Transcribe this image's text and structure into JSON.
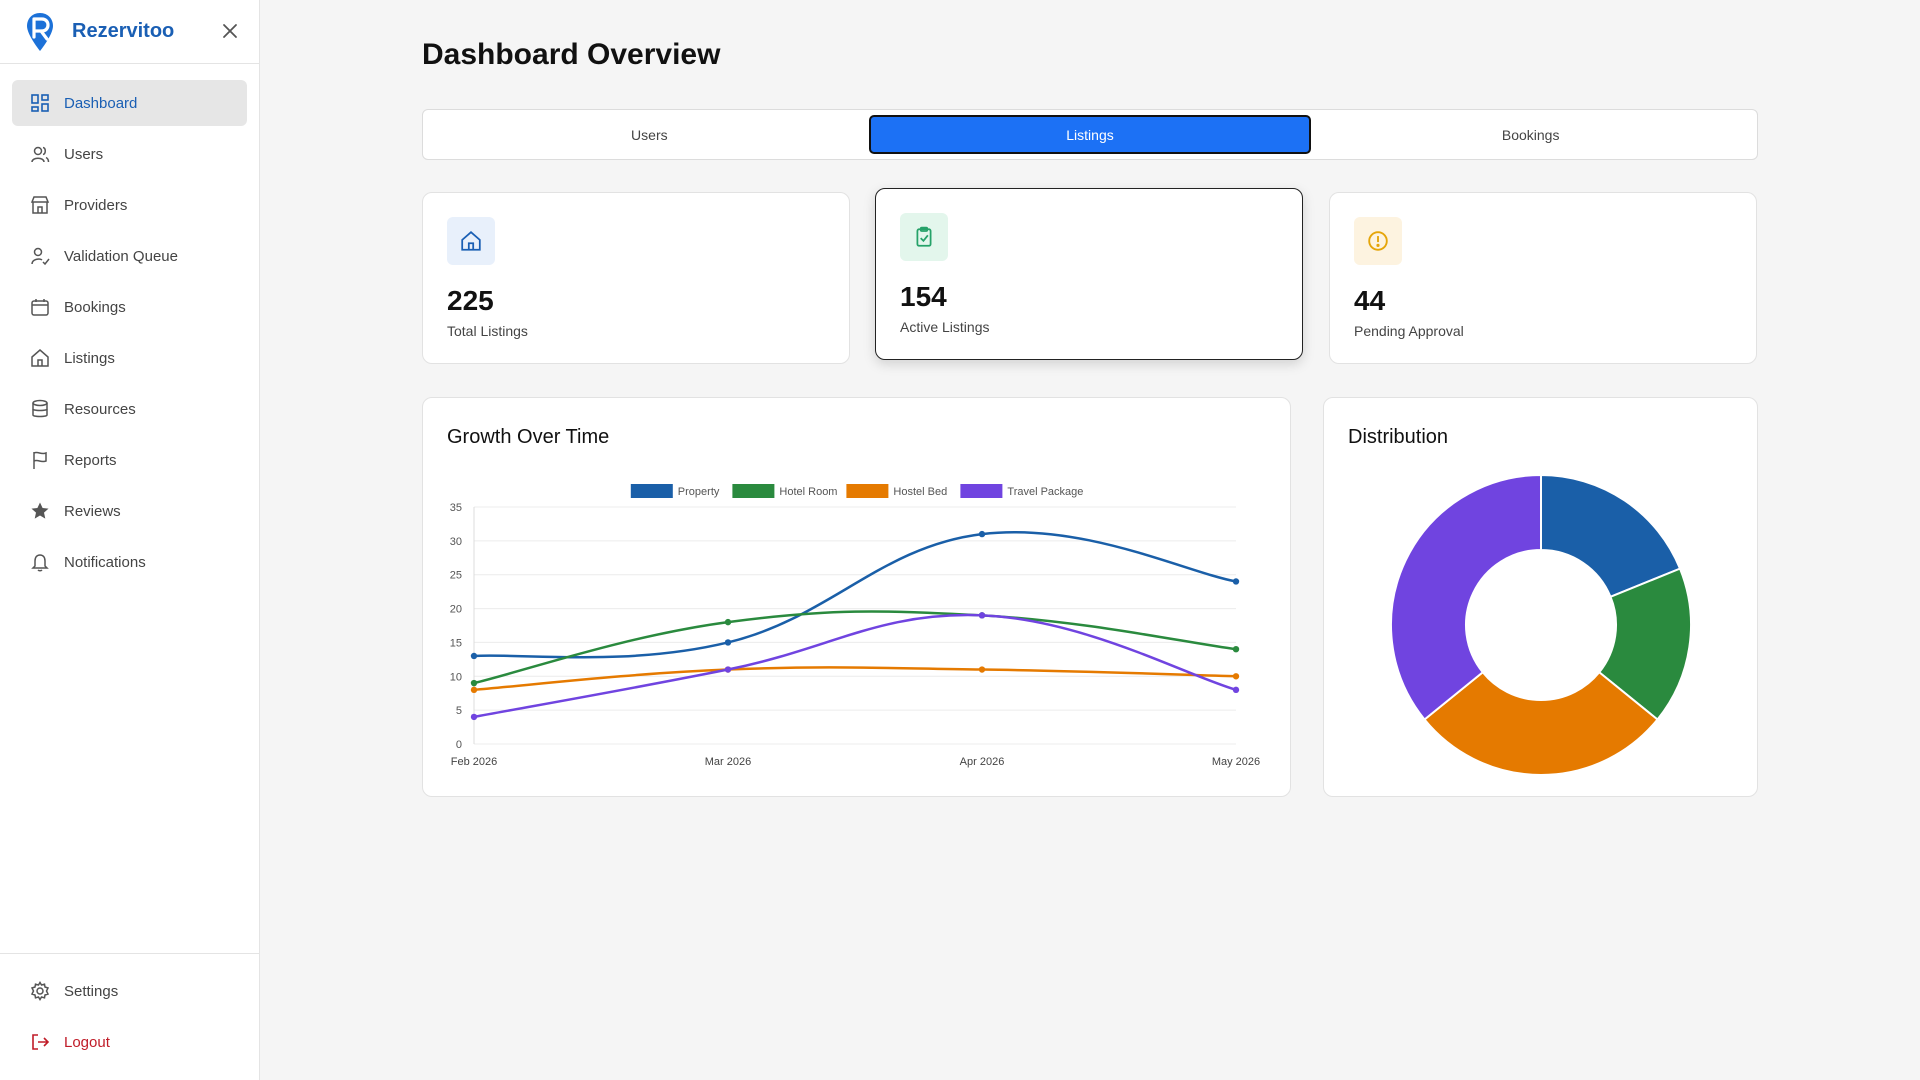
{
  "app": {
    "name": "Rezervitoo"
  },
  "sidebar": {
    "items": [
      {
        "label": "Dashboard",
        "icon": "dashboard-icon"
      },
      {
        "label": "Users",
        "icon": "users-icon"
      },
      {
        "label": "Providers",
        "icon": "store-icon"
      },
      {
        "label": "Validation Queue",
        "icon": "user-check-icon"
      },
      {
        "label": "Bookings",
        "icon": "calendar-icon"
      },
      {
        "label": "Listings",
        "icon": "home-icon"
      },
      {
        "label": "Resources",
        "icon": "database-icon"
      },
      {
        "label": "Reports",
        "icon": "flag-icon"
      },
      {
        "label": "Reviews",
        "icon": "star-icon"
      },
      {
        "label": "Notifications",
        "icon": "bell-icon"
      }
    ],
    "bottom": [
      {
        "label": "Settings",
        "icon": "gear-icon"
      },
      {
        "label": "Logout",
        "icon": "logout-icon"
      }
    ]
  },
  "main": {
    "title": "Dashboard Overview",
    "tabs": [
      {
        "label": "Users"
      },
      {
        "label": "Listings"
      },
      {
        "label": "Bookings"
      }
    ],
    "stats": [
      {
        "value": "225",
        "label": "Total Listings",
        "icon": "home-icon",
        "color": "#1a5fb4"
      },
      {
        "value": "154",
        "label": "Active Listings",
        "icon": "clipboard-check-icon",
        "color": "#26a269"
      },
      {
        "value": "44",
        "label": "Pending Approval",
        "icon": "alert-circle-icon",
        "color": "#e5a50a"
      }
    ],
    "growth_title": "Growth Over Time",
    "distribution_title": "Distribution"
  },
  "chart_data": [
    {
      "type": "line",
      "title": "Growth Over Time",
      "categories": [
        "Feb 2026",
        "Mar 2026",
        "Apr 2026",
        "May 2026"
      ],
      "ylim": [
        0,
        35
      ],
      "yticks": [
        0,
        5,
        10,
        15,
        20,
        25,
        30,
        35
      ],
      "grid": true,
      "legend": "top-center",
      "series": [
        {
          "name": "Property",
          "color": "#1a5fa8",
          "values": [
            13,
            15,
            31,
            24
          ]
        },
        {
          "name": "Hotel Room",
          "color": "#2a8a3e",
          "values": [
            9,
            18,
            19,
            14
          ]
        },
        {
          "name": "Hostel Bed",
          "color": "#e57a00",
          "values": [
            8,
            11,
            11,
            10
          ]
        },
        {
          "name": "Travel Package",
          "color": "#7044e0",
          "values": [
            4,
            11,
            19,
            8
          ]
        }
      ]
    },
    {
      "type": "pie",
      "title": "Distribution",
      "categories": [
        "Property",
        "Hotel Room",
        "Hostel Bed",
        "Travel Package"
      ],
      "values": [
        50,
        45,
        75,
        95
      ],
      "colors": [
        "#1a5fa8",
        "#2a8a3e",
        "#e57a00",
        "#7044e0"
      ]
    }
  ]
}
